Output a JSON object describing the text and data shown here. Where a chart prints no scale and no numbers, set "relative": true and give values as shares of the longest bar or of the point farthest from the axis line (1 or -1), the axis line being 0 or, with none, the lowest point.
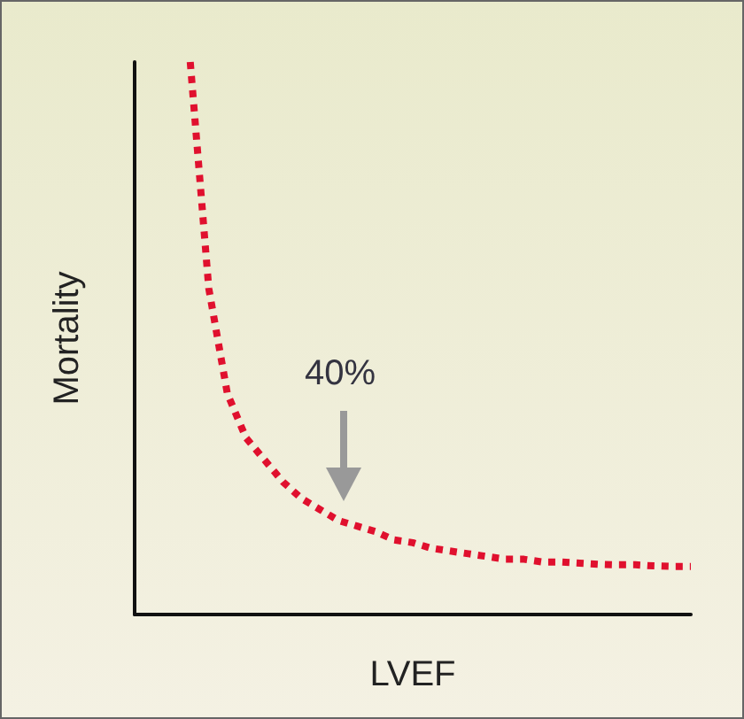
{
  "chart_data": {
    "type": "line",
    "relative": true,
    "xlabel": "LVEF",
    "ylabel": "Mortality",
    "annotations": [
      "40%"
    ],
    "categories": [
      null,
      null,
      null,
      null,
      null,
      null,
      null,
      null,
      null,
      null,
      null,
      null,
      null,
      null,
      null,
      null,
      null,
      null,
      null,
      null,
      null,
      null,
      null,
      null,
      null,
      null,
      null,
      null,
      null,
      null,
      null
    ],
    "series": [
      {
        "color": "#e0102e",
        "values": [
          null,
          null,
          null,
          1.0,
          0.59,
          0.4,
          0.32,
          0.28,
          0.24,
          0.21,
          0.19,
          0.17,
          0.16,
          0.15,
          0.135,
          0.13,
          0.12,
          0.115,
          0.11,
          0.105,
          0.1,
          0.1,
          0.095,
          0.095,
          0.093,
          0.091,
          0.09,
          0.09,
          0.088,
          0.087,
          0.087
        ]
      }
    ],
    "line_style": "dotted",
    "marker": "none",
    "grid": false
  }
}
